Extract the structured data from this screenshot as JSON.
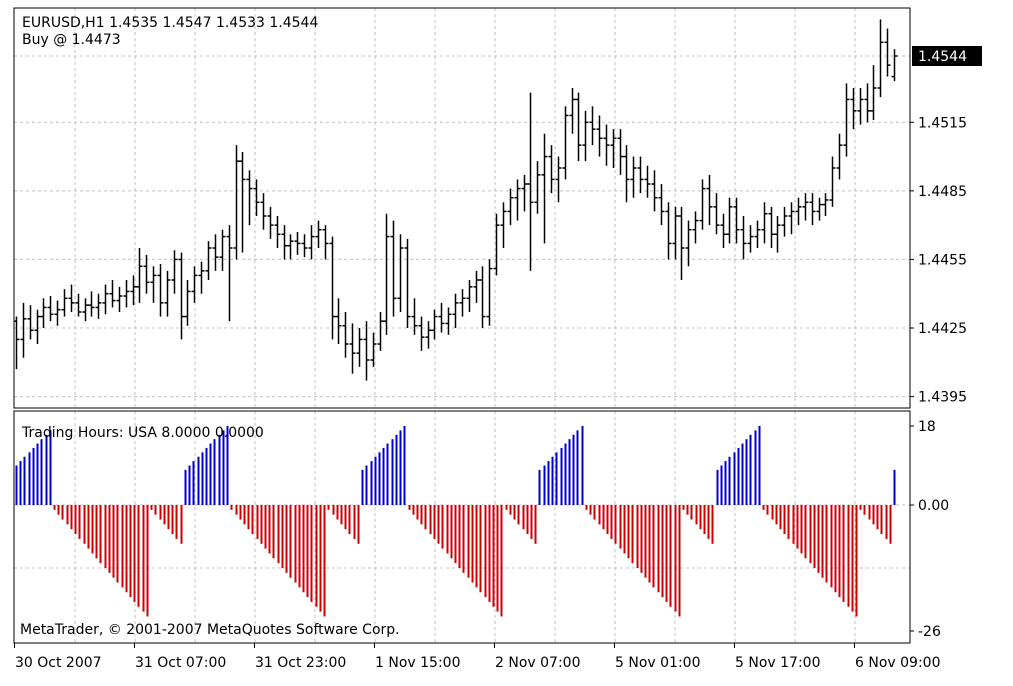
{
  "chart_data": [
    {
      "type": "bar",
      "style": "ohlc",
      "title": "EURUSD,H1  1.4535 1.4547 1.4533 1.4544",
      "annotation": "Buy @ 1.4473",
      "symbol": "EURUSD",
      "timeframe": "H1",
      "last_bar": {
        "open": 1.4535,
        "high": 1.4547,
        "low": 1.4533,
        "close": 1.4544
      },
      "current_price": 1.4544,
      "current_price_label": "1.4544",
      "y_ticks": [
        "1.4515",
        "1.4485",
        "1.4455",
        "1.4425",
        "1.4395"
      ],
      "ylim": [
        1.439,
        1.4565
      ],
      "grid": true,
      "series": [
        {
          "color": "#000000",
          "ohlc": [
            [
              1.4428,
              1.443,
              1.4407,
              1.442
            ],
            [
              1.442,
              1.4436,
              1.4412,
              1.4429
            ],
            [
              1.4429,
              1.4435,
              1.442,
              1.4424
            ],
            [
              1.4424,
              1.4433,
              1.4418,
              1.443
            ],
            [
              1.443,
              1.4438,
              1.4425,
              1.4434
            ],
            [
              1.4434,
              1.4439,
              1.4428,
              1.4431
            ],
            [
              1.4431,
              1.4437,
              1.4426,
              1.4433
            ],
            [
              1.4433,
              1.4442,
              1.443,
              1.4438
            ],
            [
              1.4438,
              1.4444,
              1.4432,
              1.4436
            ],
            [
              1.4436,
              1.444,
              1.443,
              1.4432
            ],
            [
              1.4432,
              1.4438,
              1.4428,
              1.4435
            ],
            [
              1.4435,
              1.4441,
              1.443,
              1.4434
            ],
            [
              1.4434,
              1.444,
              1.4429,
              1.4436
            ],
            [
              1.4436,
              1.4444,
              1.4431,
              1.444
            ],
            [
              1.444,
              1.4446,
              1.4434,
              1.4437
            ],
            [
              1.4437,
              1.4443,
              1.4432,
              1.4439
            ],
            [
              1.4439,
              1.4446,
              1.4434,
              1.4441
            ],
            [
              1.4441,
              1.4448,
              1.4435,
              1.4443
            ],
            [
              1.4443,
              1.446,
              1.4436,
              1.4452
            ],
            [
              1.4452,
              1.4457,
              1.444,
              1.4445
            ],
            [
              1.4445,
              1.4452,
              1.4436,
              1.4448
            ],
            [
              1.4448,
              1.4453,
              1.443,
              1.4436
            ],
            [
              1.4436,
              1.445,
              1.443,
              1.4446
            ],
            [
              1.4446,
              1.4459,
              1.444,
              1.4455
            ],
            [
              1.4455,
              1.4458,
              1.442,
              1.443
            ],
            [
              1.443,
              1.4446,
              1.4426,
              1.4441
            ],
            [
              1.4441,
              1.4452,
              1.4436,
              1.4448
            ],
            [
              1.4448,
              1.4454,
              1.444,
              1.445
            ],
            [
              1.445,
              1.4463,
              1.4446,
              1.446
            ],
            [
              1.446,
              1.4466,
              1.445,
              1.4456
            ],
            [
              1.4456,
              1.4468,
              1.445,
              1.4465
            ],
            [
              1.4465,
              1.447,
              1.4428,
              1.446
            ],
            [
              1.446,
              1.4505,
              1.4455,
              1.4498
            ],
            [
              1.4498,
              1.4502,
              1.4458,
              1.449
            ],
            [
              1.449,
              1.4494,
              1.447,
              1.4486
            ],
            [
              1.4486,
              1.449,
              1.4474,
              1.448
            ],
            [
              1.448,
              1.4484,
              1.4468,
              1.4474
            ],
            [
              1.4474,
              1.4478,
              1.4464,
              1.447
            ],
            [
              1.447,
              1.4474,
              1.446,
              1.4466
            ],
            [
              1.4466,
              1.447,
              1.4455,
              1.4461
            ],
            [
              1.4461,
              1.4466,
              1.4455,
              1.4463
            ],
            [
              1.4463,
              1.4467,
              1.4457,
              1.4462
            ],
            [
              1.4462,
              1.4466,
              1.4456,
              1.446
            ],
            [
              1.446,
              1.447,
              1.4455,
              1.4465
            ],
            [
              1.4465,
              1.4472,
              1.446,
              1.4468
            ],
            [
              1.4468,
              1.447,
              1.4455,
              1.4462
            ],
            [
              1.4462,
              1.4465,
              1.442,
              1.443
            ],
            [
              1.443,
              1.4438,
              1.4418,
              1.4426
            ],
            [
              1.4426,
              1.4432,
              1.4412,
              1.4418
            ],
            [
              1.4418,
              1.4427,
              1.4405,
              1.4414
            ],
            [
              1.4414,
              1.4425,
              1.4408,
              1.442
            ],
            [
              1.442,
              1.4428,
              1.4402,
              1.4411
            ],
            [
              1.4411,
              1.4423,
              1.4408,
              1.4418
            ],
            [
              1.4418,
              1.4432,
              1.4415,
              1.4428
            ],
            [
              1.4428,
              1.4475,
              1.4422,
              1.4465
            ],
            [
              1.4465,
              1.4472,
              1.443,
              1.4438
            ],
            [
              1.4438,
              1.4466,
              1.4432,
              1.446
            ],
            [
              1.446,
              1.4464,
              1.4425,
              1.443
            ],
            [
              1.443,
              1.4438,
              1.4422,
              1.4426
            ],
            [
              1.4426,
              1.443,
              1.4415,
              1.4421
            ],
            [
              1.4421,
              1.4428,
              1.4416,
              1.4424
            ],
            [
              1.4424,
              1.4433,
              1.442,
              1.443
            ],
            [
              1.443,
              1.4436,
              1.4423,
              1.4427
            ],
            [
              1.4427,
              1.4434,
              1.4422,
              1.4431
            ],
            [
              1.4431,
              1.444,
              1.4425,
              1.4436
            ],
            [
              1.4436,
              1.4442,
              1.443,
              1.4438
            ],
            [
              1.4438,
              1.4446,
              1.4432,
              1.4443
            ],
            [
              1.4443,
              1.445,
              1.4436,
              1.4446
            ],
            [
              1.4446,
              1.4452,
              1.4425,
              1.443
            ],
            [
              1.443,
              1.4455,
              1.4426,
              1.4451
            ],
            [
              1.4451,
              1.4475,
              1.4448,
              1.447
            ],
            [
              1.447,
              1.448,
              1.446,
              1.4476
            ],
            [
              1.4476,
              1.4486,
              1.447,
              1.4482
            ],
            [
              1.4482,
              1.449,
              1.4472,
              1.4486
            ],
            [
              1.4486,
              1.4492,
              1.4476,
              1.4488
            ],
            [
              1.4488,
              1.4528,
              1.445,
              1.448
            ],
            [
              1.448,
              1.4498,
              1.4475,
              1.4492
            ],
            [
              1.4492,
              1.451,
              1.4462,
              1.45
            ],
            [
              1.45,
              1.4505,
              1.4484,
              1.449
            ],
            [
              1.449,
              1.45,
              1.448,
              1.4495
            ],
            [
              1.4495,
              1.4522,
              1.449,
              1.4518
            ],
            [
              1.4518,
              1.453,
              1.451,
              1.4525
            ],
            [
              1.4525,
              1.4528,
              1.4498,
              1.4505
            ],
            [
              1.4505,
              1.452,
              1.4498,
              1.4515
            ],
            [
              1.4515,
              1.4522,
              1.4505,
              1.4512
            ],
            [
              1.4512,
              1.4518,
              1.45,
              1.4508
            ],
            [
              1.4508,
              1.4514,
              1.4496,
              1.4505
            ],
            [
              1.4505,
              1.4512,
              1.4495,
              1.4508
            ],
            [
              1.4508,
              1.4512,
              1.4492,
              1.45
            ],
            [
              1.45,
              1.4505,
              1.448,
              1.449
            ],
            [
              1.449,
              1.45,
              1.4482,
              1.4495
            ],
            [
              1.4495,
              1.45,
              1.4484,
              1.449
            ],
            [
              1.449,
              1.4496,
              1.4482,
              1.4488
            ],
            [
              1.4488,
              1.4494,
              1.4476,
              1.4482
            ],
            [
              1.4482,
              1.4488,
              1.447,
              1.4476
            ],
            [
              1.4476,
              1.448,
              1.4455,
              1.4462
            ],
            [
              1.4462,
              1.4478,
              1.4455,
              1.4474
            ],
            [
              1.4474,
              1.4478,
              1.4446,
              1.446
            ],
            [
              1.446,
              1.4472,
              1.4452,
              1.4468
            ],
            [
              1.4468,
              1.4476,
              1.4462,
              1.4472
            ],
            [
              1.4472,
              1.449,
              1.4468,
              1.4486
            ],
            [
              1.4486,
              1.4492,
              1.447,
              1.4478
            ],
            [
              1.4478,
              1.4484,
              1.4466,
              1.447
            ],
            [
              1.447,
              1.4475,
              1.446,
              1.4466
            ],
            [
              1.4466,
              1.4482,
              1.4462,
              1.4478
            ],
            [
              1.4478,
              1.4482,
              1.4462,
              1.4468
            ],
            [
              1.4468,
              1.4474,
              1.4455,
              1.4462
            ],
            [
              1.4462,
              1.447,
              1.4458,
              1.4465
            ],
            [
              1.4465,
              1.4472,
              1.446,
              1.4468
            ],
            [
              1.4468,
              1.448,
              1.4462,
              1.4475
            ],
            [
              1.4475,
              1.4478,
              1.446,
              1.4466
            ],
            [
              1.4466,
              1.4474,
              1.4458,
              1.447
            ],
            [
              1.447,
              1.4478,
              1.4465,
              1.4474
            ],
            [
              1.4474,
              1.448,
              1.4466,
              1.4476
            ],
            [
              1.4476,
              1.4482,
              1.447,
              1.4478
            ],
            [
              1.4478,
              1.4484,
              1.4472,
              1.448
            ],
            [
              1.448,
              1.4484,
              1.447,
              1.4476
            ],
            [
              1.4476,
              1.4482,
              1.4472,
              1.4479
            ],
            [
              1.4479,
              1.4484,
              1.4474,
              1.4481
            ],
            [
              1.4481,
              1.45,
              1.4478,
              1.4495
            ],
            [
              1.4495,
              1.451,
              1.449,
              1.4505
            ],
            [
              1.4505,
              1.4532,
              1.45,
              1.4525
            ],
            [
              1.4525,
              1.453,
              1.4512,
              1.452
            ],
            [
              1.452,
              1.453,
              1.4514,
              1.4525
            ],
            [
              1.4525,
              1.4532,
              1.4515,
              1.452
            ],
            [
              1.452,
              1.454,
              1.4516,
              1.453
            ],
            [
              1.453,
              1.456,
              1.4526,
              1.455
            ],
            [
              1.455,
              1.4556,
              1.4535,
              1.454
            ],
            [
              1.4535,
              1.4547,
              1.4533,
              1.4544
            ]
          ]
        }
      ]
    },
    {
      "type": "bar",
      "title": "Trading Hours: USA 8.0000 0.0000",
      "y_ticks": [
        "18",
        "0.00",
        "-26"
      ],
      "ylim": [
        -26,
        18
      ],
      "grid": true,
      "series": [
        {
          "name": "positive",
          "color": "#0000cc"
        },
        {
          "name": "negative",
          "color": "#cc0000"
        }
      ],
      "values": [
        9,
        10,
        11,
        12,
        13,
        14,
        15,
        16,
        17,
        -1,
        -2,
        -3,
        -4,
        -5,
        -6,
        -7,
        -8,
        -9,
        -10,
        -11,
        -12,
        -13,
        -14,
        -15,
        -16,
        -17,
        -18,
        -19,
        -20,
        -21,
        -22,
        -23,
        -1,
        -2,
        -3,
        -4,
        -5,
        -6,
        -7,
        -8,
        8,
        9,
        10,
        11,
        12,
        13,
        14,
        15,
        16,
        17,
        18,
        -1,
        -2,
        -3,
        -4,
        -5,
        -6,
        -7,
        -8,
        -9,
        -10,
        -11,
        -12,
        -13,
        -14,
        -15,
        -16,
        -17,
        -18,
        -19,
        -20,
        -21,
        -22,
        -23,
        -1,
        -2,
        -3,
        -4,
        -5,
        -6,
        -7,
        -8,
        8,
        9,
        10,
        11,
        12,
        13,
        14,
        15,
        16,
        17,
        18,
        -1,
        -2,
        -3,
        -4,
        -5,
        -6,
        -7,
        -8,
        -9,
        -10,
        -11,
        -12,
        -13,
        -14,
        -15,
        -16,
        -17,
        -18,
        -19,
        -20,
        -21,
        -22,
        -23,
        -1,
        -2,
        -3,
        -4,
        -5,
        -6,
        -7,
        -8,
        8,
        9,
        10,
        11,
        12,
        13,
        14,
        15,
        16,
        17,
        18,
        -1,
        -2,
        -3,
        -4,
        -5,
        -6,
        -7,
        -8,
        -9,
        -10,
        -11,
        -12,
        -13,
        -14,
        -15,
        -16,
        -17,
        -18,
        -19,
        -20,
        -21,
        -22,
        -23,
        -1,
        -2,
        -3,
        -4,
        -5,
        -6,
        -7,
        -8,
        8,
        9,
        10,
        11,
        12,
        13,
        14,
        15,
        16,
        17,
        18,
        -1,
        -2,
        -3,
        -4,
        -5,
        -6,
        -7,
        -8,
        -9,
        -10,
        -11,
        -12,
        -13,
        -14,
        -15,
        -16,
        -17,
        -18,
        -19,
        -20,
        -21,
        -22,
        -23,
        -1,
        -2,
        -3,
        -4,
        -5,
        -6,
        -7,
        -8,
        8
      ]
    }
  ],
  "x_ticks": [
    "30 Oct 2007",
    "31 Oct 07:00",
    "31 Oct 23:00",
    "1 Nov 15:00",
    "2 Nov 07:00",
    "5 Nov 01:00",
    "5 Nov 17:00",
    "6 Nov 09:00"
  ],
  "copyright": "MetaTrader, © 2001-2007 MetaQuotes Software Corp.",
  "colors": {
    "background": "#ffffff",
    "grid": "#c0c0c0",
    "bars": "#000000",
    "positive": "#0000cc",
    "negative": "#cc0000",
    "price_tag_bg": "#000000",
    "price_tag_fg": "#ffffff"
  }
}
